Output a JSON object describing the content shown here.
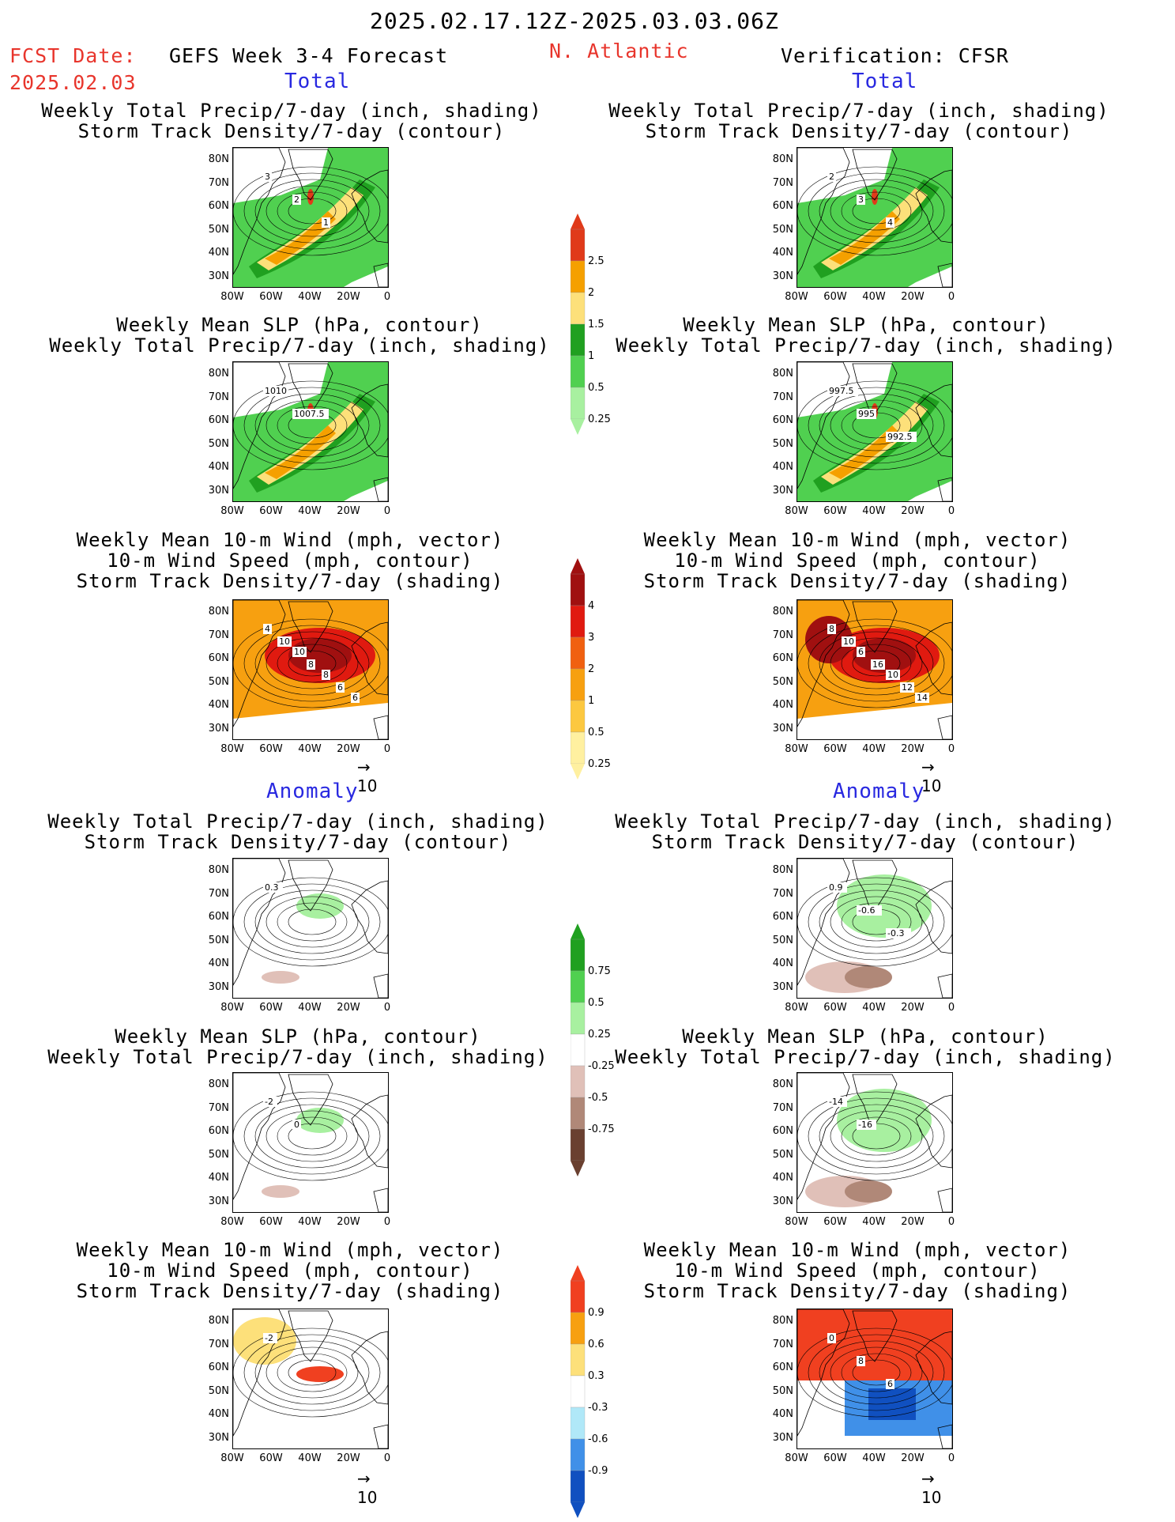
{
  "header": {
    "date_range": "2025.02.17.12Z-2025.03.03.06Z",
    "fcst_label": "FCST Date:",
    "fcst_date": "2025.02.03",
    "model": "GEFS Week 3-4 Forecast",
    "region": "N. Atlantic",
    "verification": "Verification: CFSR"
  },
  "sections": {
    "total": "Total",
    "anomaly": "Anomaly"
  },
  "titles": {
    "precip_track": [
      "Weekly Total Precip/7-day (inch, shading)",
      "Storm Track Density/7-day (contour)"
    ],
    "slp_precip": [
      "Weekly Mean SLP (hPa, contour)",
      "Weekly Total Precip/7-day (inch, shading)"
    ],
    "wind": [
      "Weekly Mean 10-m Wind (mph, vector)",
      "10-m Wind Speed (mph, contour)",
      "Storm Track Density/7-day (shading)"
    ]
  },
  "axes": {
    "lat": [
      "80N",
      "70N",
      "60N",
      "50N",
      "40N",
      "30N"
    ],
    "lon": [
      "80W",
      "60W",
      "40W",
      "20W",
      "0"
    ]
  },
  "vector_ref": "10",
  "colorbars": {
    "precip_total": {
      "labels": [
        "2.5",
        "2",
        "1.5",
        "1",
        "0.5",
        "0.25"
      ],
      "colors": [
        "#e03a1a",
        "#f5a000",
        "#fde07a",
        "#20a020",
        "#50d050",
        "#a8f0a0"
      ]
    },
    "track_total": {
      "labels": [
        "4",
        "3",
        "2",
        "1",
        "0.5",
        "0.25"
      ],
      "colors": [
        "#a01010",
        "#e01a10",
        "#f06010",
        "#f7a010",
        "#fcc840",
        "#fff0a0"
      ]
    },
    "precip_anom": {
      "labels": [
        "0.75",
        "0.5",
        "0.25",
        "-0.25",
        "-0.5",
        "-0.75"
      ],
      "colors": [
        "#20a020",
        "#50d050",
        "#a8f0a0",
        "#ffffff",
        "#e0c0b8",
        "#b08878",
        "#6a4030"
      ]
    },
    "track_anom": {
      "labels": [
        "0.9",
        "0.6",
        "0.3",
        "-0.3",
        "-0.6",
        "-0.9"
      ],
      "colors": [
        "#f04020",
        "#f7a010",
        "#fde07a",
        "#ffffff",
        "#b0e8f8",
        "#4090e8",
        "#1050c0"
      ]
    }
  },
  "panels": [
    {
      "id": "fc-tot-precip",
      "labels": [
        "3",
        "2",
        "1"
      ]
    },
    {
      "id": "fc-tot-slp",
      "labels": [
        "1010",
        "1007.5"
      ]
    },
    {
      "id": "fc-tot-wind",
      "labels": [
        "4",
        "10",
        "8",
        "6",
        "10",
        "8",
        "6"
      ]
    },
    {
      "id": "vf-tot-precip",
      "labels": [
        "2",
        "3",
        "4"
      ]
    },
    {
      "id": "vf-tot-slp",
      "labels": [
        "997.5",
        "995",
        "992.5"
      ]
    },
    {
      "id": "vf-tot-wind",
      "labels": [
        "8",
        "6",
        "10",
        "14",
        "10",
        "16",
        "12"
      ]
    },
    {
      "id": "fc-an-precip",
      "labels": [
        "0.3"
      ]
    },
    {
      "id": "fc-an-slp",
      "labels": [
        "-2",
        "0"
      ]
    },
    {
      "id": "fc-an-wind",
      "labels": [
        "-2"
      ]
    },
    {
      "id": "vf-an-precip",
      "labels": [
        "0.9",
        "-0.6",
        "-0.3"
      ]
    },
    {
      "id": "vf-an-slp",
      "labels": [
        "-14",
        "-16"
      ]
    },
    {
      "id": "vf-an-wind",
      "labels": [
        "0",
        "8",
        "6"
      ]
    }
  ]
}
